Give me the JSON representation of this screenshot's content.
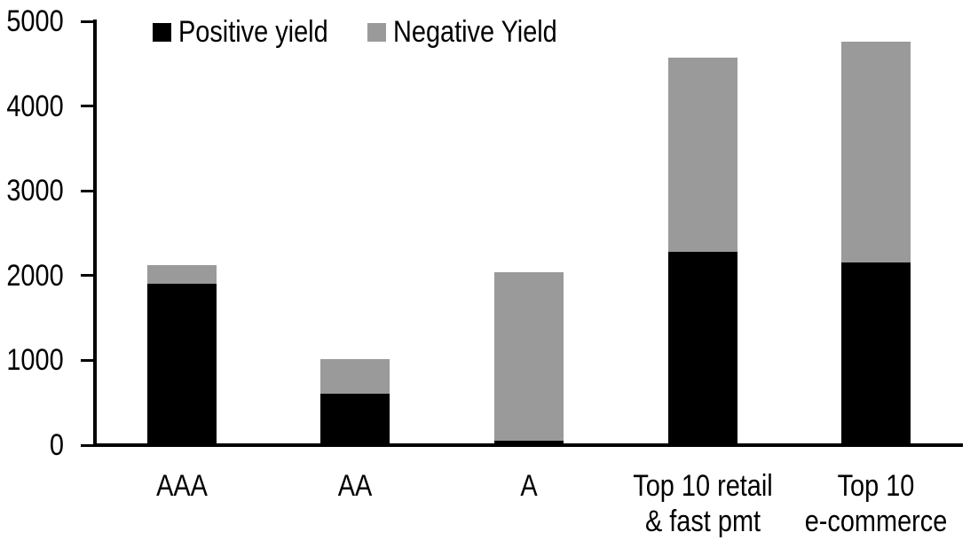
{
  "chart_data": {
    "type": "bar",
    "stacked": true,
    "title": "",
    "xlabel": "",
    "ylabel": "",
    "categories": [
      "AAA",
      "AA",
      "A",
      "Top 10 retail\n& fast pmt",
      "Top 10\ne-commerce"
    ],
    "series": [
      {
        "name": "Positive yield",
        "color": "#000000",
        "values": [
          1890,
          600,
          40,
          2270,
          2140
        ]
      },
      {
        "name": "Negative Yield",
        "color": "#9a9a9a",
        "values": [
          220,
          400,
          1990,
          2290,
          2610
        ]
      }
    ],
    "stack_totals": [
      2110,
      1000,
      2030,
      4560,
      4750
    ],
    "ylim": [
      0,
      5000
    ],
    "ytick_step": 1000,
    "ytick_labels": [
      "0",
      "1000",
      "2000",
      "3000",
      "4000",
      "5000"
    ],
    "legend_position": "top-left-inside",
    "grid": false,
    "axis_color": "#000000",
    "background_color": "#ffffff"
  }
}
